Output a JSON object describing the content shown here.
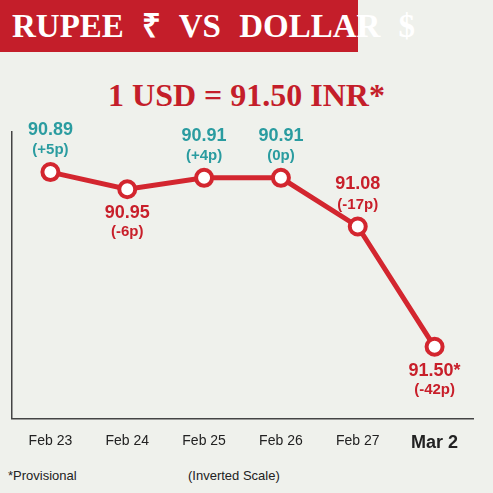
{
  "chart_data": {
    "type": "line",
    "title": "RUPEE ₹ VS DOLLAR $",
    "subtitle": "1 USD = 91.50 INR*",
    "categories": [
      "Feb 23",
      "Feb 24",
      "Feb 25",
      "Feb 26",
      "Feb 27",
      "Mar 2"
    ],
    "values": [
      90.89,
      90.95,
      90.91,
      90.91,
      91.08,
      91.5
    ],
    "value_labels": [
      "90.89",
      "90.95",
      "90.91",
      "90.91",
      "91.08",
      "91.50*"
    ],
    "changes": [
      5,
      -6,
      4,
      0,
      -17,
      -42
    ],
    "change_labels": [
      "(+5p)",
      "(-6p)",
      "(+4p)",
      "(0p)",
      "(-17p)",
      "(-42p)"
    ],
    "color": "#d3262f",
    "ylim": [
      91.75,
      90.75
    ],
    "data_labels": true,
    "tick_labels": "x",
    "grid": false,
    "annotations": [
      "*Provisional",
      "(Inverted Scale)"
    ]
  }
}
